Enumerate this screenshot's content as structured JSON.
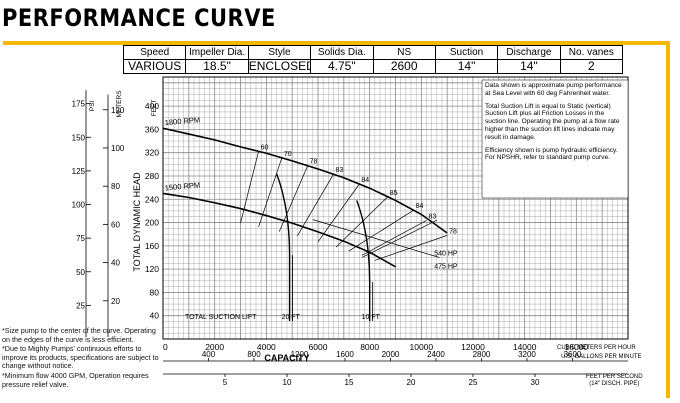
{
  "page": {
    "title": "PERFORMANCE CURVE",
    "accent_color": "#f5b800",
    "grid_color": "#888888"
  },
  "specs": {
    "headers": [
      "Speed",
      "Impeller Dia.",
      "Style",
      "Solids Dia.",
      "NS",
      "Suction",
      "Discharge",
      "No. vanes"
    ],
    "values": [
      "VARIOUS",
      "18.5\"",
      "ENCLOSED",
      "4.75\"",
      "2600",
      "14\"",
      "14\"",
      "2"
    ]
  },
  "info_box": [
    "Data shown is approximate pump performance at Sea Level with 60 deg Fahrenheit water.",
    "Total Suction Lift is equal to Static (vertical) Suction Lift plus all Friction Losses in the suction line. Operating the pump at a flow rate higher than the suction lift lines indicate may result in damage.",
    "Efficiency shown is pump hydraulic efficiency. For NPSHR, refer to standard pump curve."
  ],
  "notes": [
    "*Size pump to the center of the curve. Operating on the edges of the curve is less efficient.",
    "*Due to Mighty Pumps' continuous efforts to improve its products, specifications are subject to change without notice.",
    "*Minimum flow 4000 GPM, Operation requires pressure relief valve."
  ],
  "chart_data": {
    "type": "line",
    "xlabel": "CAPACITY",
    "ylabel": "TOTAL DYNAMIC HEAD",
    "xlim": [
      0,
      18000
    ],
    "ylim": [
      0,
      450
    ],
    "x_ticks": [
      0,
      2000,
      4000,
      6000,
      8000,
      10000,
      12000,
      14000,
      16000
    ],
    "y_ticks": [
      40,
      80,
      120,
      160,
      200,
      240,
      280,
      320,
      360,
      400
    ],
    "x_unit": "U.S. GALLONS PER MINUTE",
    "y_unit": "FEET",
    "psi_axis": {
      "label": "PSI",
      "ticks": [
        25,
        50,
        75,
        100,
        125,
        150,
        175
      ]
    },
    "meters_axis": {
      "label": "METERS",
      "ticks": [
        20,
        40,
        60,
        80,
        100,
        120
      ]
    },
    "m3h_axis": {
      "label": "CUBIC METERS PER HOUR",
      "ticks": [
        400,
        800,
        1200,
        1600,
        2000,
        2400,
        2800,
        3200,
        3600
      ]
    },
    "velocity_axis": {
      "label": "FEET PER SECOND",
      "sublabel": "(14\" DISCH. PIPE)",
      "ticks": [
        5,
        10,
        15,
        20,
        25,
        30
      ]
    },
    "series": [
      {
        "name": "1800 RPM",
        "x": [
          0,
          1000,
          2000,
          3000,
          4000,
          5000,
          6000,
          7000,
          8000,
          9000,
          10000,
          11000
        ],
        "y": [
          362,
          352,
          342,
          330,
          319,
          306,
          292,
          277,
          259,
          238,
          214,
          182
        ]
      },
      {
        "name": "1500 RPM",
        "x": [
          0,
          1000,
          2000,
          3000,
          4000,
          5000,
          6000,
          7000,
          8000,
          9000
        ],
        "y": [
          250,
          243,
          234,
          224,
          212,
          199,
          184,
          168,
          149,
          124
        ]
      }
    ],
    "efficiency_islands": [
      60,
      70,
      78,
      83,
      84,
      85,
      84,
      83,
      78
    ],
    "horsepower_lines": [
      "540 HP",
      "475 HP"
    ],
    "suction_lift": {
      "label": "TOTAL SUCTION LIFT",
      "lines": [
        {
          "label": "20 FT",
          "x": 4900
        },
        {
          "label": "10 FT",
          "x": 8000
        }
      ]
    }
  }
}
